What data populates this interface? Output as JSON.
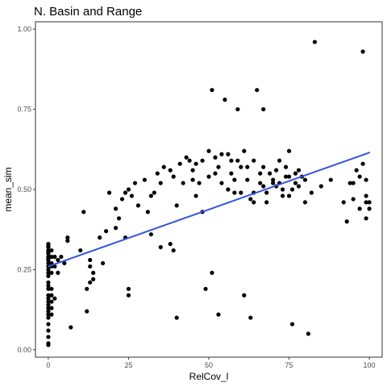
{
  "chart_data": {
    "type": "scatter",
    "title": "N. Basin and Range",
    "xlabel": "RelCov_l",
    "ylabel": "mean_sim",
    "xlim": [
      -4,
      104
    ],
    "ylim": [
      -0.023,
      1.023
    ],
    "x_ticks": [
      0,
      25,
      50,
      75,
      100
    ],
    "x_tick_labels": [
      "0",
      "25",
      "50",
      "75",
      "100"
    ],
    "y_ticks": [
      0.0,
      0.25,
      0.5,
      0.75,
      1.0
    ],
    "y_tick_labels": [
      "0.00",
      "0.25",
      "0.50",
      "0.75",
      "1.00"
    ],
    "grid": false,
    "legend": "none",
    "colors": {
      "points": "#000000",
      "fit_line": "#3355dd",
      "panel_border": "#333333",
      "tick_label": "#4d4d4d"
    },
    "fit_line": {
      "x": [
        0,
        100
      ],
      "y": [
        0.26,
        0.615
      ]
    },
    "series": [
      {
        "x": [
          0,
          0,
          0,
          0,
          0,
          0,
          0,
          0,
          0,
          0,
          0,
          0,
          0,
          0,
          0,
          0,
          0,
          0,
          0,
          0,
          0,
          0,
          0,
          0,
          0,
          0,
          0,
          0,
          0,
          0,
          1,
          1,
          1,
          1,
          1,
          1,
          1,
          1,
          1,
          1,
          2,
          2,
          2,
          3,
          3,
          4,
          5,
          6,
          6,
          7,
          10,
          11,
          12,
          12,
          13,
          13,
          13,
          14,
          14,
          16,
          17,
          18,
          19,
          21,
          21,
          22,
          23,
          24,
          24,
          25,
          25,
          25,
          26,
          27,
          28,
          30,
          31,
          32,
          32,
          33,
          34,
          35,
          35,
          36,
          38,
          38,
          39,
          39,
          40,
          40,
          41,
          42,
          43,
          44,
          45,
          45,
          46,
          46,
          47,
          48,
          48,
          49,
          50,
          50,
          51,
          51,
          52,
          52,
          53,
          53,
          54,
          54,
          55,
          56,
          56,
          57,
          57,
          58,
          58,
          59,
          59,
          60,
          60,
          61,
          61,
          62,
          62,
          63,
          63,
          64,
          64,
          64,
          65,
          66,
          66,
          67,
          67,
          67,
          68,
          68,
          69,
          70,
          70,
          71,
          71,
          72,
          72,
          73,
          73,
          74,
          74,
          75,
          75,
          75,
          76,
          76,
          77,
          77,
          78,
          78,
          79,
          80,
          80,
          81,
          82,
          83,
          85,
          88,
          92,
          93,
          94,
          95,
          95,
          96,
          97,
          97,
          98,
          98,
          99,
          99,
          99,
          99,
          100,
          100
        ],
        "y": [
          0.33,
          0.32,
          0.31,
          0.3,
          0.29,
          0.28,
          0.27,
          0.26,
          0.25,
          0.24,
          0.23,
          0.21,
          0.2,
          0.19,
          0.17,
          0.16,
          0.15,
          0.14,
          0.13,
          0.12,
          0.11,
          0.1,
          0.08,
          0.06,
          0.04,
          0.02,
          0.015,
          0.325,
          0.305,
          0.285,
          0.31,
          0.29,
          0.27,
          0.26,
          0.24,
          0.19,
          0.17,
          0.15,
          0.13,
          0.11,
          0.29,
          0.26,
          0.16,
          0.28,
          0.24,
          0.29,
          0.27,
          0.34,
          0.35,
          0.07,
          0.31,
          0.43,
          0.12,
          0.19,
          0.21,
          0.26,
          0.28,
          0.22,
          0.24,
          0.35,
          0.27,
          0.37,
          0.49,
          0.38,
          0.44,
          0.41,
          0.47,
          0.35,
          0.49,
          0.19,
          0.17,
          0.5,
          0.48,
          0.52,
          0.45,
          0.53,
          0.43,
          0.36,
          0.48,
          0.49,
          0.55,
          0.52,
          0.32,
          0.57,
          0.33,
          0.56,
          0.31,
          0.54,
          0.45,
          0.1,
          0.58,
          0.52,
          0.6,
          0.59,
          0.53,
          0.56,
          0.58,
          0.48,
          0.52,
          0.43,
          0.59,
          0.19,
          0.62,
          0.54,
          0.24,
          0.81,
          0.55,
          0.6,
          0.57,
          0.11,
          0.52,
          0.61,
          0.78,
          0.5,
          0.61,
          0.55,
          0.59,
          0.49,
          0.53,
          0.59,
          0.75,
          0.49,
          0.57,
          0.17,
          0.62,
          0.57,
          0.53,
          0.1,
          0.47,
          0.46,
          0.49,
          0.59,
          0.81,
          0.52,
          0.55,
          0.75,
          0.57,
          0.51,
          0.49,
          0.46,
          0.55,
          0.52,
          0.53,
          0.51,
          0.56,
          0.59,
          0.52,
          0.48,
          0.5,
          0.54,
          0.57,
          0.62,
          0.54,
          0.48,
          0.08,
          0.5,
          0.55,
          0.52,
          0.56,
          0.51,
          0.54,
          0.53,
          0.46,
          0.05,
          0.49,
          0.96,
          0.51,
          0.53,
          0.46,
          0.4,
          0.52,
          0.47,
          0.52,
          0.56,
          0.54,
          0.44,
          0.93,
          0.58,
          0.48,
          0.46,
          0.53,
          0.41,
          0.46,
          0.44
        ]
      }
    ]
  }
}
